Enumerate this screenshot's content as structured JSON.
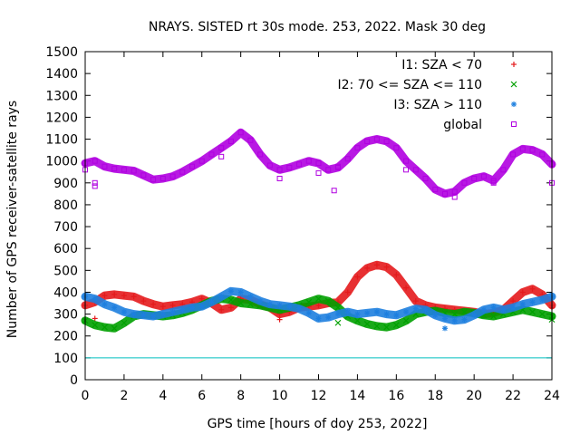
{
  "chart_data": {
    "type": "scatter",
    "title": "NRAYS. SISTED rt 30s mode. 253, 2022. Mask 30 deg",
    "xlabel": "GPS time [hours of doy 253, 2022]",
    "ylabel": "Number of GPS receiver-satellite rays",
    "xlim": [
      0,
      24
    ],
    "ylim": [
      0,
      1500
    ],
    "xticks": [
      "0",
      "2",
      "4",
      "6",
      "8",
      "10",
      "12",
      "14",
      "16",
      "18",
      "20",
      "22",
      "24"
    ],
    "yticks": [
      "0",
      "100",
      "200",
      "300",
      "400",
      "500",
      "600",
      "700",
      "800",
      "900",
      "1000",
      "1100",
      "1200",
      "1300",
      "1400",
      "1500"
    ],
    "grid": false,
    "legend_position": "top-right",
    "reference_line": {
      "y": 100,
      "color": "#00bfbf"
    },
    "series": [
      {
        "name": "I1: SZA < 70",
        "marker": "+",
        "color": "#e41a1c",
        "x": [
          0,
          0.5,
          1,
          1.5,
          2,
          2.5,
          3,
          3.5,
          4,
          4.5,
          5,
          5.5,
          6,
          6.5,
          7,
          7.5,
          8,
          8.5,
          9,
          9.5,
          10,
          10.5,
          11,
          11.5,
          12,
          12.5,
          13,
          13.5,
          14,
          14.5,
          15,
          15.5,
          16,
          16.5,
          17,
          17.5,
          18,
          18.5,
          19,
          19.5,
          20,
          20.5,
          21,
          21.5,
          22,
          22.5,
          23,
          23.5,
          24
        ],
        "y": [
          340,
          355,
          385,
          390,
          385,
          380,
          360,
          345,
          335,
          340,
          345,
          355,
          370,
          350,
          320,
          330,
          370,
          365,
          345,
          330,
          300,
          310,
          330,
          335,
          340,
          350,
          355,
          400,
          470,
          510,
          525,
          515,
          480,
          420,
          360,
          340,
          330,
          325,
          320,
          315,
          310,
          300,
          305,
          320,
          360,
          400,
          415,
          390,
          340
        ],
        "outliers": [
          [
            0.5,
            280
          ],
          [
            10,
            275
          ],
          [
            24,
            330
          ]
        ]
      },
      {
        "name": "I2: 70 <= SZA <= 110",
        "marker": "x",
        "color": "#00a000",
        "x": [
          0,
          0.5,
          1,
          1.5,
          2,
          2.5,
          3,
          3.5,
          4,
          4.5,
          5,
          5.5,
          6,
          6.5,
          7,
          7.5,
          8,
          8.5,
          9,
          9.5,
          10,
          10.5,
          11,
          11.5,
          12,
          12.5,
          13,
          13.5,
          14,
          14.5,
          15,
          15.5,
          16,
          16.5,
          17,
          17.5,
          18,
          18.5,
          19,
          19.5,
          20,
          20.5,
          21,
          21.5,
          22,
          22.5,
          23,
          23.5,
          24
        ],
        "y": [
          270,
          250,
          240,
          235,
          260,
          290,
          300,
          295,
          290,
          295,
          305,
          320,
          340,
          360,
          370,
          365,
          350,
          345,
          340,
          330,
          320,
          330,
          340,
          355,
          370,
          360,
          330,
          290,
          270,
          255,
          245,
          240,
          250,
          270,
          300,
          310,
          315,
          305,
          300,
          310,
          305,
          295,
          290,
          300,
          310,
          320,
          310,
          300,
          290
        ],
        "outliers": [
          [
            13,
            260
          ],
          [
            24,
            275
          ]
        ]
      },
      {
        "name": "I3: SZA > 110",
        "marker": "*",
        "color": "#1e7fdf",
        "x": [
          0,
          0.5,
          1,
          1.5,
          2,
          2.5,
          3,
          3.5,
          4,
          4.5,
          5,
          5.5,
          6,
          6.5,
          7,
          7.5,
          8,
          8.5,
          9,
          9.5,
          10,
          10.5,
          11,
          11.5,
          12,
          12.5,
          13,
          13.5,
          14,
          14.5,
          15,
          15.5,
          16,
          16.5,
          17,
          17.5,
          18,
          18.5,
          19,
          19.5,
          20,
          20.5,
          21,
          21.5,
          22,
          22.5,
          23,
          23.5,
          24
        ],
        "y": [
          380,
          370,
          345,
          330,
          310,
          300,
          295,
          290,
          300,
          310,
          320,
          330,
          335,
          355,
          380,
          405,
          400,
          380,
          360,
          345,
          340,
          335,
          325,
          305,
          280,
          285,
          300,
          310,
          300,
          305,
          310,
          300,
          295,
          310,
          325,
          320,
          295,
          280,
          270,
          275,
          295,
          320,
          330,
          320,
          330,
          345,
          355,
          365,
          380
        ],
        "outliers": [
          [
            18.5,
            235
          ]
        ]
      },
      {
        "name": "global",
        "marker": "square",
        "color": "#b000e0",
        "x": [
          0,
          0.5,
          1,
          1.5,
          2,
          2.5,
          3,
          3.5,
          4,
          4.5,
          5,
          5.5,
          6,
          6.5,
          7,
          7.5,
          8,
          8.5,
          9,
          9.5,
          10,
          10.5,
          11,
          11.5,
          12,
          12.5,
          13,
          13.5,
          14,
          14.5,
          15,
          15.5,
          16,
          16.5,
          17,
          17.5,
          18,
          18.5,
          19,
          19.5,
          20,
          20.5,
          21,
          21.5,
          22,
          22.5,
          23,
          23.5,
          24
        ],
        "y": [
          990,
          1000,
          975,
          965,
          960,
          955,
          935,
          915,
          920,
          930,
          950,
          975,
          1000,
          1030,
          1060,
          1090,
          1130,
          1095,
          1030,
          980,
          960,
          970,
          985,
          1000,
          990,
          960,
          970,
          1010,
          1060,
          1090,
          1100,
          1090,
          1060,
          1000,
          960,
          920,
          870,
          850,
          860,
          900,
          920,
          930,
          910,
          960,
          1030,
          1055,
          1050,
          1030,
          985
        ],
        "outliers": [
          [
            0,
            960
          ],
          [
            0.5,
            900
          ],
          [
            0.5,
            885
          ],
          [
            7,
            1020
          ],
          [
            10,
            920
          ],
          [
            12,
            945
          ],
          [
            12.8,
            865
          ],
          [
            13,
            975
          ],
          [
            16.5,
            960
          ],
          [
            19,
            835
          ],
          [
            21,
            900
          ],
          [
            24,
            900
          ]
        ]
      }
    ]
  }
}
